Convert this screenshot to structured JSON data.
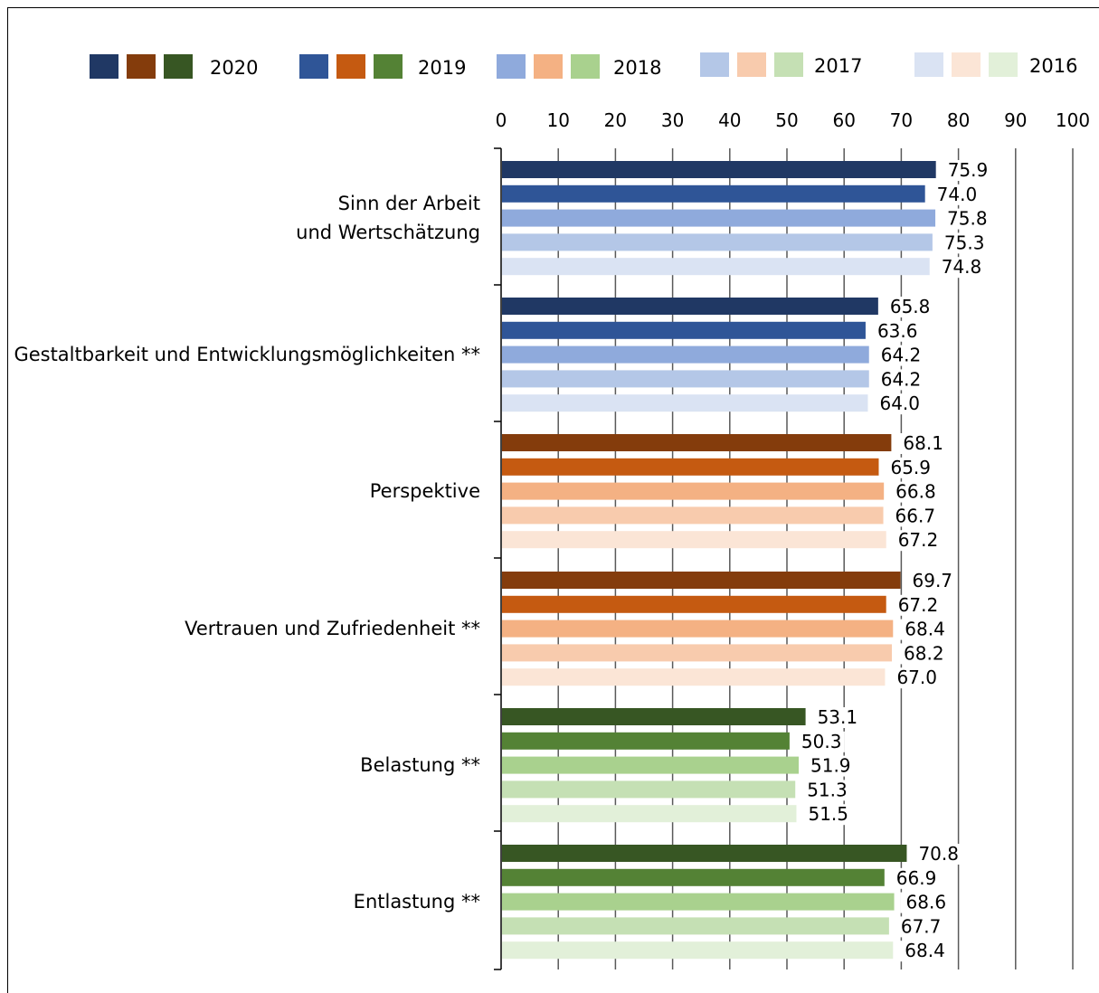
{
  "chart_data": {
    "type": "bar",
    "orientation": "horizontal",
    "title": "",
    "xlabel": "",
    "ylabel": "",
    "xlim": [
      0,
      100
    ],
    "x_ticks": [
      "0",
      "10",
      "20",
      "30",
      "40",
      "50",
      "60",
      "70",
      "80",
      "90",
      "100"
    ],
    "grid": "vertical",
    "legend_position": "top",
    "legend": [
      {
        "label": "2020",
        "colors": [
          "#203864",
          "#843C0C",
          "#375623"
        ]
      },
      {
        "label": "2019",
        "colors": [
          "#2F5597",
          "#C55A11",
          "#548235"
        ]
      },
      {
        "label": "2018",
        "colors": [
          "#8FAADC",
          "#F4B183",
          "#A9D18E"
        ]
      },
      {
        "label": "2017",
        "colors": [
          "#B4C7E7",
          "#F8CBAD",
          "#C5E0B4"
        ]
      },
      {
        "label": "2016",
        "colors": [
          "#DAE3F3",
          "#FBE5D6",
          "#E2F0D9"
        ]
      }
    ],
    "series_years": [
      "2020",
      "2019",
      "2018",
      "2017",
      "2016"
    ],
    "categories": [
      {
        "label_lines": [
          "Sinn der Arbeit",
          "und Wertschätzung"
        ],
        "color_group": "blue",
        "values": [
          75.9,
          74.0,
          75.8,
          75.3,
          74.8
        ],
        "value_labels": [
          "75.9",
          "74.0",
          "75.8",
          "75.3",
          "74.8"
        ]
      },
      {
        "label_lines": [
          "Gestaltbarkeit und Entwicklungsmöglichkeiten **"
        ],
        "color_group": "blue",
        "values": [
          65.8,
          63.6,
          64.2,
          64.2,
          64.0
        ],
        "value_labels": [
          "65.8",
          "63.6",
          "64.2",
          "64.2",
          "64.0"
        ]
      },
      {
        "label_lines": [
          "Perspektive"
        ],
        "color_group": "orange",
        "values": [
          68.1,
          65.9,
          66.8,
          66.7,
          67.2
        ],
        "value_labels": [
          "68.1",
          "65.9",
          "66.8",
          "66.7",
          "67.2"
        ]
      },
      {
        "label_lines": [
          "Vertrauen und Zufriedenheit **"
        ],
        "color_group": "orange",
        "values": [
          69.7,
          67.2,
          68.4,
          68.2,
          67.0
        ],
        "value_labels": [
          "69.7",
          "67.2",
          "68.4",
          "68.2",
          "67.0"
        ]
      },
      {
        "label_lines": [
          "Belastung **"
        ],
        "color_group": "green",
        "values": [
          53.1,
          50.3,
          51.9,
          51.3,
          51.5
        ],
        "value_labels": [
          "53.1",
          "50.3",
          "51.9",
          "51.3",
          "51.5"
        ]
      },
      {
        "label_lines": [
          "Entlastung **"
        ],
        "color_group": "green",
        "values": [
          70.8,
          66.9,
          68.6,
          67.7,
          68.4
        ],
        "value_labels": [
          "70.8",
          "66.9",
          "68.6",
          "67.7",
          "68.4"
        ]
      }
    ],
    "color_groups": {
      "blue": [
        "#203864",
        "#2F5597",
        "#8FAADC",
        "#B4C7E7",
        "#DAE3F3"
      ],
      "orange": [
        "#843C0C",
        "#C55A11",
        "#F4B183",
        "#F8CBAD",
        "#FBE5D6"
      ],
      "green": [
        "#375623",
        "#548235",
        "#A9D18E",
        "#C5E0B4",
        "#E2F0D9"
      ]
    }
  }
}
